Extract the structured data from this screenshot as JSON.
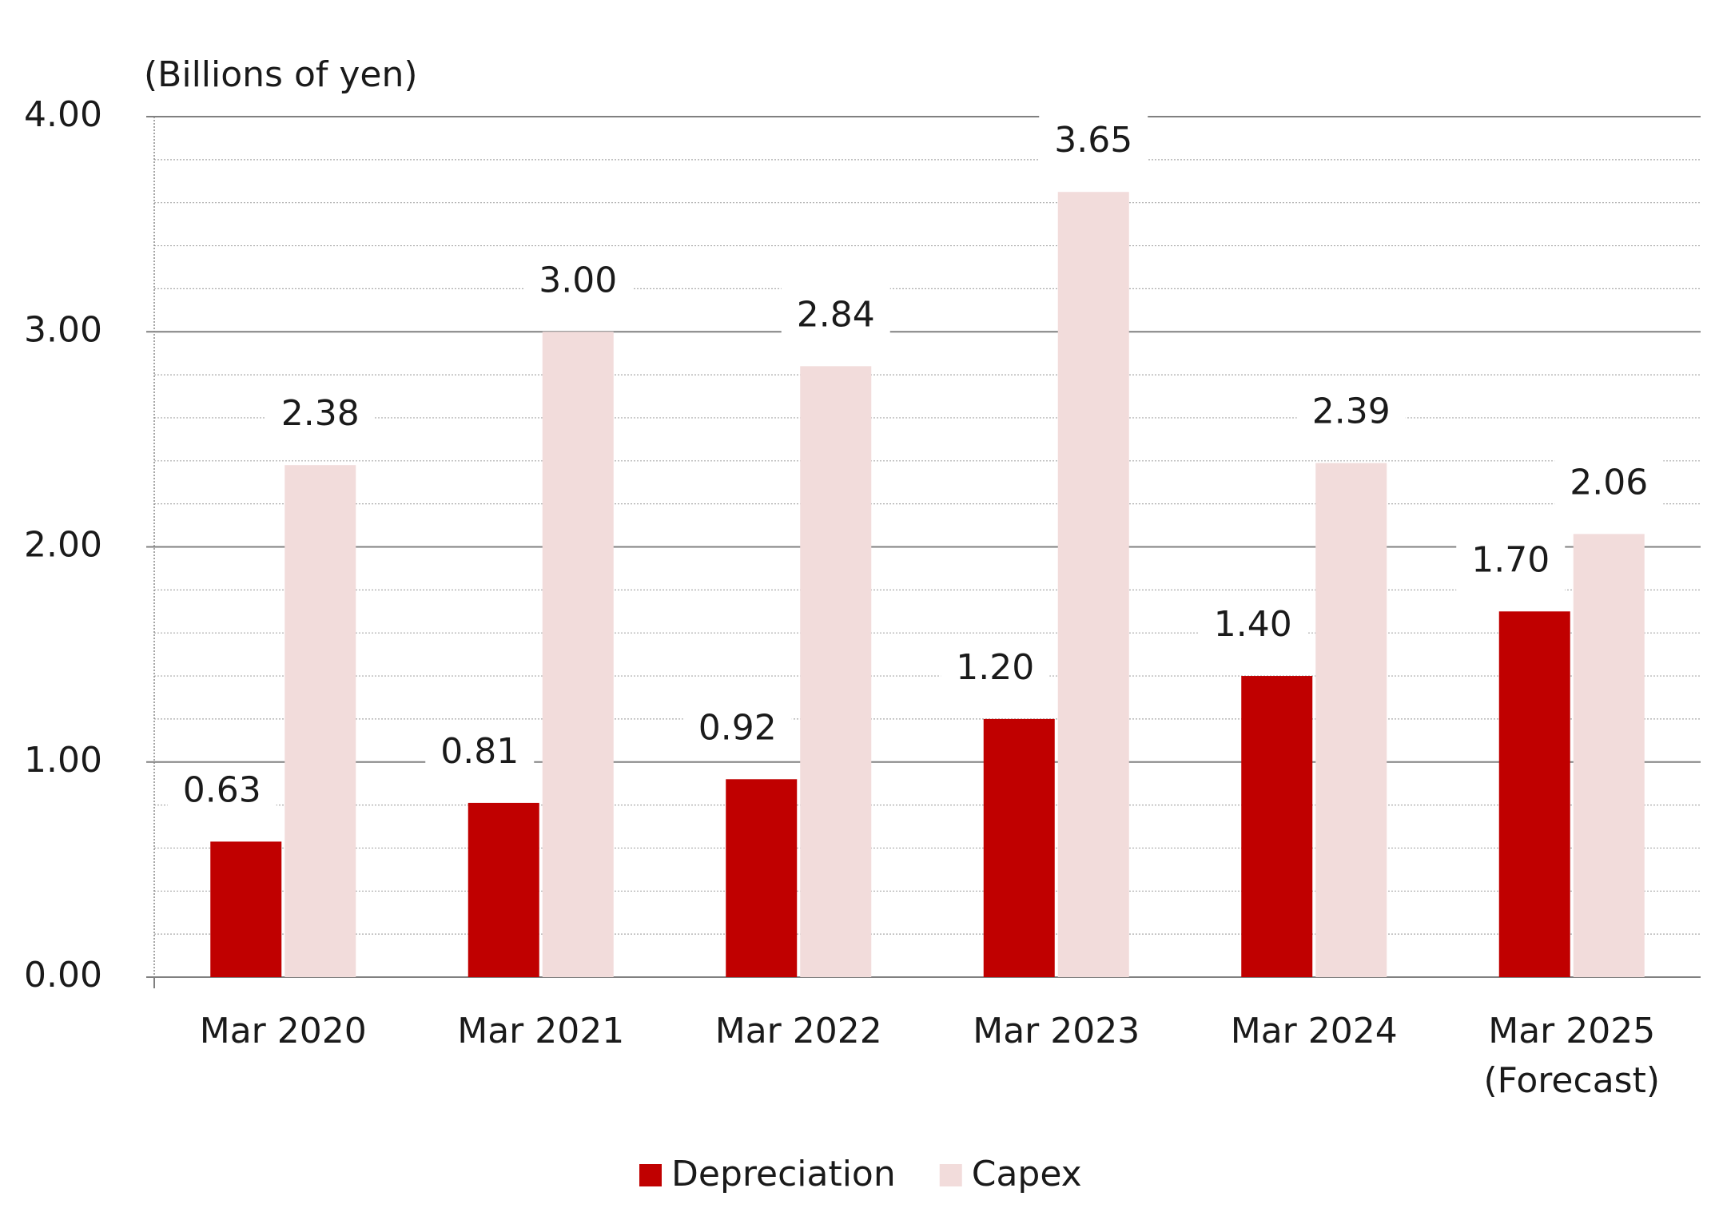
{
  "chart_data": {
    "type": "bar",
    "y_axis_label": "(Billions of yen)",
    "categories": [
      "Mar 2020",
      "Mar 2021",
      "Mar 2022",
      "Mar 2023",
      "Mar 2024",
      "Mar 2025\n(Forecast)"
    ],
    "series": [
      {
        "name": "Depreciation",
        "color": "#c00000",
        "values": [
          0.63,
          0.81,
          0.92,
          1.2,
          1.4,
          1.7
        ],
        "value_labels": [
          "0.63",
          "0.81",
          "0.92",
          "1.20",
          "1.40",
          "1.70"
        ]
      },
      {
        "name": "Capex",
        "color": "#f2dcdb",
        "values": [
          2.38,
          3.0,
          2.84,
          3.65,
          2.39,
          2.06
        ],
        "value_labels": [
          "2.38",
          "3.00",
          "2.84",
          "3.65",
          "2.39",
          "2.06"
        ]
      }
    ],
    "ylim": [
      0,
      4
    ],
    "yticks": [
      {
        "value": 0,
        "label": "0.00"
      },
      {
        "value": 1,
        "label": "1.00"
      },
      {
        "value": 2,
        "label": "2.00"
      },
      {
        "value": 3,
        "label": "3.00"
      },
      {
        "value": 4,
        "label": "4.00"
      }
    ],
    "grid": true,
    "legend": "bottom"
  }
}
